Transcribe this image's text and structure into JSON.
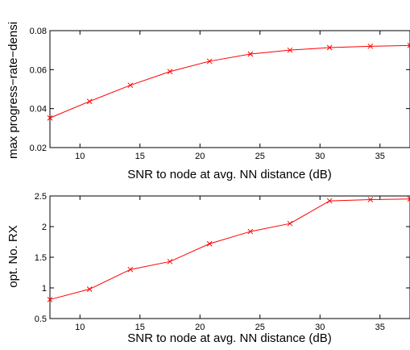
{
  "chart_data": [
    {
      "type": "line",
      "title": "",
      "xlabel": "SNR to node at avg. NN distance (dB)",
      "ylabel": "max progress−rate−densi",
      "xlim": [
        7.5,
        37.5
      ],
      "ylim": [
        0.02,
        0.08
      ],
      "xticks": [
        10,
        15,
        20,
        25,
        30,
        35
      ],
      "xtick_labels": [
        "10",
        "15",
        "20",
        "25",
        "30",
        "35"
      ],
      "yticks": [
        0.02,
        0.04,
        0.06,
        0.08
      ],
      "ytick_labels": [
        "0.02",
        "0.04",
        "0.06",
        "0.08"
      ],
      "grid": false,
      "series": [
        {
          "color": "#ff0000",
          "marker": "x",
          "x": [
            7.5,
            10.8,
            14.2,
            17.5,
            20.8,
            24.2,
            27.5,
            30.8,
            34.2,
            37.5
          ],
          "y": [
            0.0352,
            0.0437,
            0.052,
            0.059,
            0.0643,
            0.068,
            0.07,
            0.0713,
            0.072,
            0.0724
          ]
        }
      ]
    },
    {
      "type": "line",
      "title": "",
      "xlabel": "SNR to node at avg. NN distance (dB)",
      "ylabel": "opt. No. RX",
      "xlim": [
        7.5,
        37.5
      ],
      "ylim": [
        0.5,
        2.5
      ],
      "xticks": [
        10,
        15,
        20,
        25,
        30,
        35
      ],
      "xtick_labels": [
        "10",
        "15",
        "20",
        "25",
        "30",
        "35"
      ],
      "yticks": [
        0.5,
        1,
        1.5,
        2,
        2.5
      ],
      "ytick_labels": [
        "0.5",
        "1",
        "1.5",
        "2",
        "2.5"
      ],
      "grid": false,
      "series": [
        {
          "color": "#ff0000",
          "marker": "x",
          "x": [
            7.5,
            10.8,
            14.2,
            17.5,
            20.8,
            24.2,
            27.5,
            30.8,
            34.2,
            37.5
          ],
          "y": [
            0.81,
            0.98,
            1.3,
            1.43,
            1.72,
            1.92,
            2.05,
            2.42,
            2.44,
            2.45
          ]
        }
      ]
    }
  ]
}
